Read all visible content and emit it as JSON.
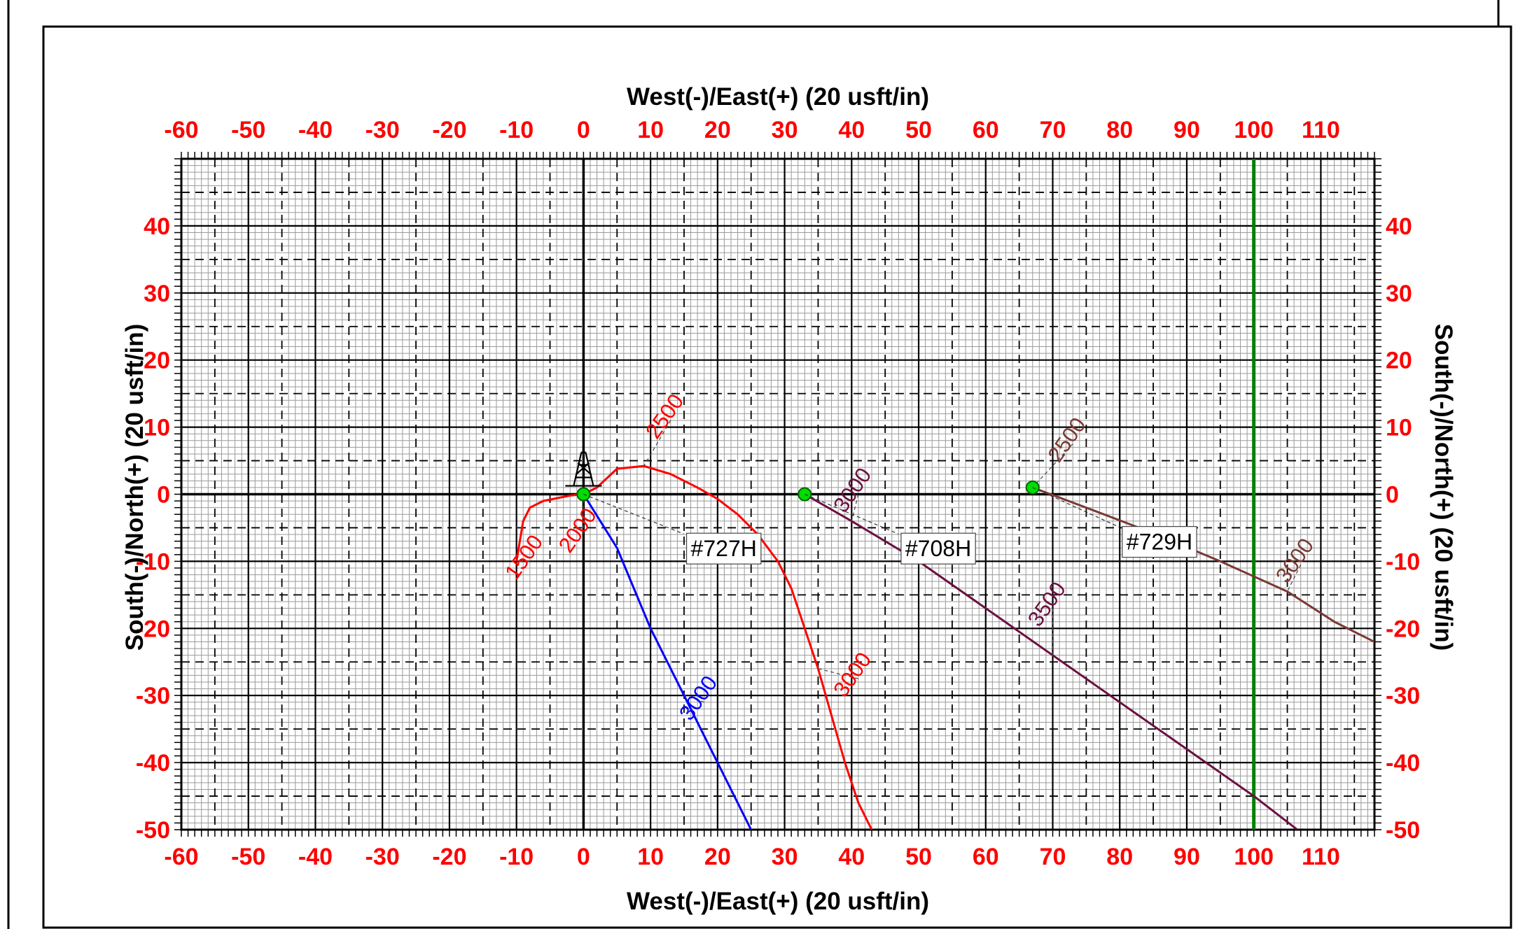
{
  "colors": {
    "tick_labels": "#ff0000",
    "grid_major": "#000000",
    "grid_minor": "#9a9a9a",
    "lease_line": "#008000",
    "well_727H": "#0000ff",
    "well_offset_red": "#ff0000",
    "well_708H": "#6b1040",
    "well_729H": "#7a3a34",
    "surface_marker": "#00dd00"
  },
  "chart_data": {
    "type": "line",
    "title": "",
    "xlabel": "West(-)/East(+) (20 usft/in)",
    "ylabel": "South(-)/North(+) (20 usft/in)",
    "xlim": [
      -60,
      118
    ],
    "ylim": [
      -50,
      50
    ],
    "x_ticks": [
      -60,
      -50,
      -40,
      -30,
      -20,
      -10,
      0,
      10,
      20,
      30,
      40,
      50,
      60,
      70,
      80,
      90,
      100,
      110
    ],
    "y_ticks": [
      40,
      30,
      20,
      10,
      0,
      -10,
      -20,
      -30,
      -40,
      -50
    ],
    "grid": true,
    "lease_line": {
      "x": 100,
      "icon": "lease-line"
    },
    "rig_icon": {
      "name": "drilling-rig-icon",
      "x": 0,
      "y": 1.5
    },
    "series": [
      {
        "key": "well_727H",
        "name": "#727H",
        "points": [
          [
            0,
            0
          ],
          [
            5,
            -8
          ],
          [
            10,
            -20
          ],
          [
            15,
            -30
          ],
          [
            20,
            -40
          ],
          [
            25,
            -50
          ]
        ],
        "surface": [
          0,
          0
        ],
        "label_at": [
          16,
          -8
        ],
        "depth_labels": [
          {
            "text": "3000",
            "at": [
              18,
              -31
            ]
          }
        ]
      },
      {
        "key": "well_offset_red",
        "points": [
          [
            -10,
            -10
          ],
          [
            -9.5,
            -7
          ],
          [
            -9,
            -4
          ],
          [
            -8,
            -2
          ],
          [
            -6,
            -1
          ],
          [
            -2,
            -0.2
          ],
          [
            0,
            0
          ],
          [
            2,
            1
          ],
          [
            5,
            3.8
          ],
          [
            9,
            4.2
          ],
          [
            13,
            3
          ],
          [
            17,
            1
          ],
          [
            20,
            -0.7
          ],
          [
            23,
            -3
          ],
          [
            26,
            -6
          ],
          [
            29,
            -10
          ],
          [
            31,
            -14
          ],
          [
            33,
            -20
          ],
          [
            35,
            -26
          ],
          [
            37,
            -33
          ],
          [
            39,
            -40
          ],
          [
            41,
            -46
          ],
          [
            43,
            -50
          ]
        ],
        "depth_labels": [
          {
            "text": "2500",
            "at": [
              13,
              11
            ]
          },
          {
            "text": "2000",
            "at": [
              0,
              -6
            ]
          },
          {
            "text": "1500",
            "at": [
              -8,
              -10
            ]
          },
          {
            "text": "3000",
            "at": [
              41,
              -27.5
            ]
          }
        ]
      },
      {
        "key": "well_708H",
        "name": "#708H",
        "points": [
          [
            33,
            0
          ],
          [
            40,
            -4
          ],
          [
            50,
            -10
          ],
          [
            60,
            -17
          ],
          [
            70,
            -24
          ],
          [
            80,
            -31
          ],
          [
            90,
            -38
          ],
          [
            100,
            -45
          ],
          [
            106.5,
            -50
          ]
        ],
        "surface": [
          33,
          0
        ],
        "label_at": [
          48,
          -8
        ],
        "depth_labels": [
          {
            "text": "3000",
            "at": [
              41,
              0
            ]
          },
          {
            "text": "3500",
            "at": [
              70,
              -17
            ]
          }
        ]
      },
      {
        "key": "well_729H",
        "name": "#729H",
        "points": [
          [
            67,
            1
          ],
          [
            75,
            -2
          ],
          [
            85,
            -5.8
          ],
          [
            95,
            -10
          ],
          [
            105,
            -14.5
          ],
          [
            112,
            -19
          ],
          [
            118,
            -22
          ]
        ],
        "surface": [
          67,
          1
        ],
        "label_at": [
          81,
          -7
        ],
        "depth_labels": [
          {
            "text": "2500",
            "at": [
              73,
              7.5
            ]
          },
          {
            "text": "3000",
            "at": [
              107,
              -10.5
            ]
          }
        ]
      }
    ]
  }
}
